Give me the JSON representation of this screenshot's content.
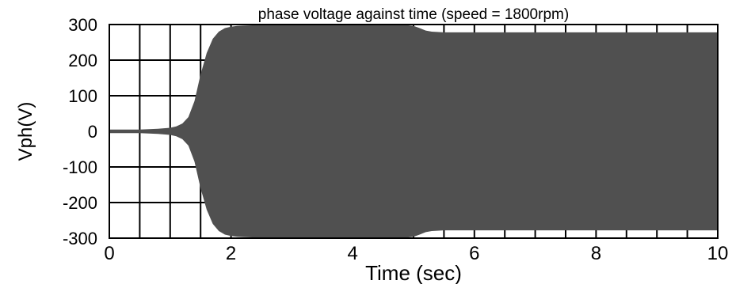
{
  "chart_data": {
    "type": "area",
    "title": "phase voltage against time (speed = 1800rpm)",
    "xlabel": "Time (sec)",
    "ylabel": "Vph(V)",
    "xlim": [
      0,
      10
    ],
    "ylim": [
      -300,
      300
    ],
    "xticks": [
      0,
      2,
      4,
      6,
      8,
      10
    ],
    "yticks": [
      300,
      200,
      100,
      0,
      -100,
      -200,
      -300
    ],
    "grid": true,
    "legend": "none",
    "fill_color": "#505050",
    "series": [
      {
        "envelope_time": [
          0,
          0.5,
          0.8,
          1.0,
          1.1,
          1.2,
          1.3,
          1.4,
          1.5,
          1.6,
          1.7,
          1.8,
          1.9,
          2.0,
          2.1,
          2.2,
          2.4,
          3.0,
          4.0,
          4.9,
          5.0,
          5.1,
          5.2,
          5.3,
          5.5,
          6.0,
          8.0,
          10.0
        ],
        "upper_voltage": [
          5,
          5,
          7,
          10,
          14,
          22,
          40,
          85,
          160,
          220,
          260,
          280,
          290,
          294,
          296,
          297,
          298,
          298,
          298,
          298,
          296,
          290,
          283,
          280,
          278,
          278,
          278,
          278
        ],
        "lower_voltage": [
          -5,
          -5,
          -7,
          -10,
          -14,
          -22,
          -40,
          -85,
          -160,
          -220,
          -260,
          -280,
          -290,
          -294,
          -296,
          -297,
          -298,
          -298,
          -298,
          -298,
          -296,
          -290,
          -283,
          -280,
          -278,
          -278,
          -278,
          -278
        ]
      }
    ]
  }
}
